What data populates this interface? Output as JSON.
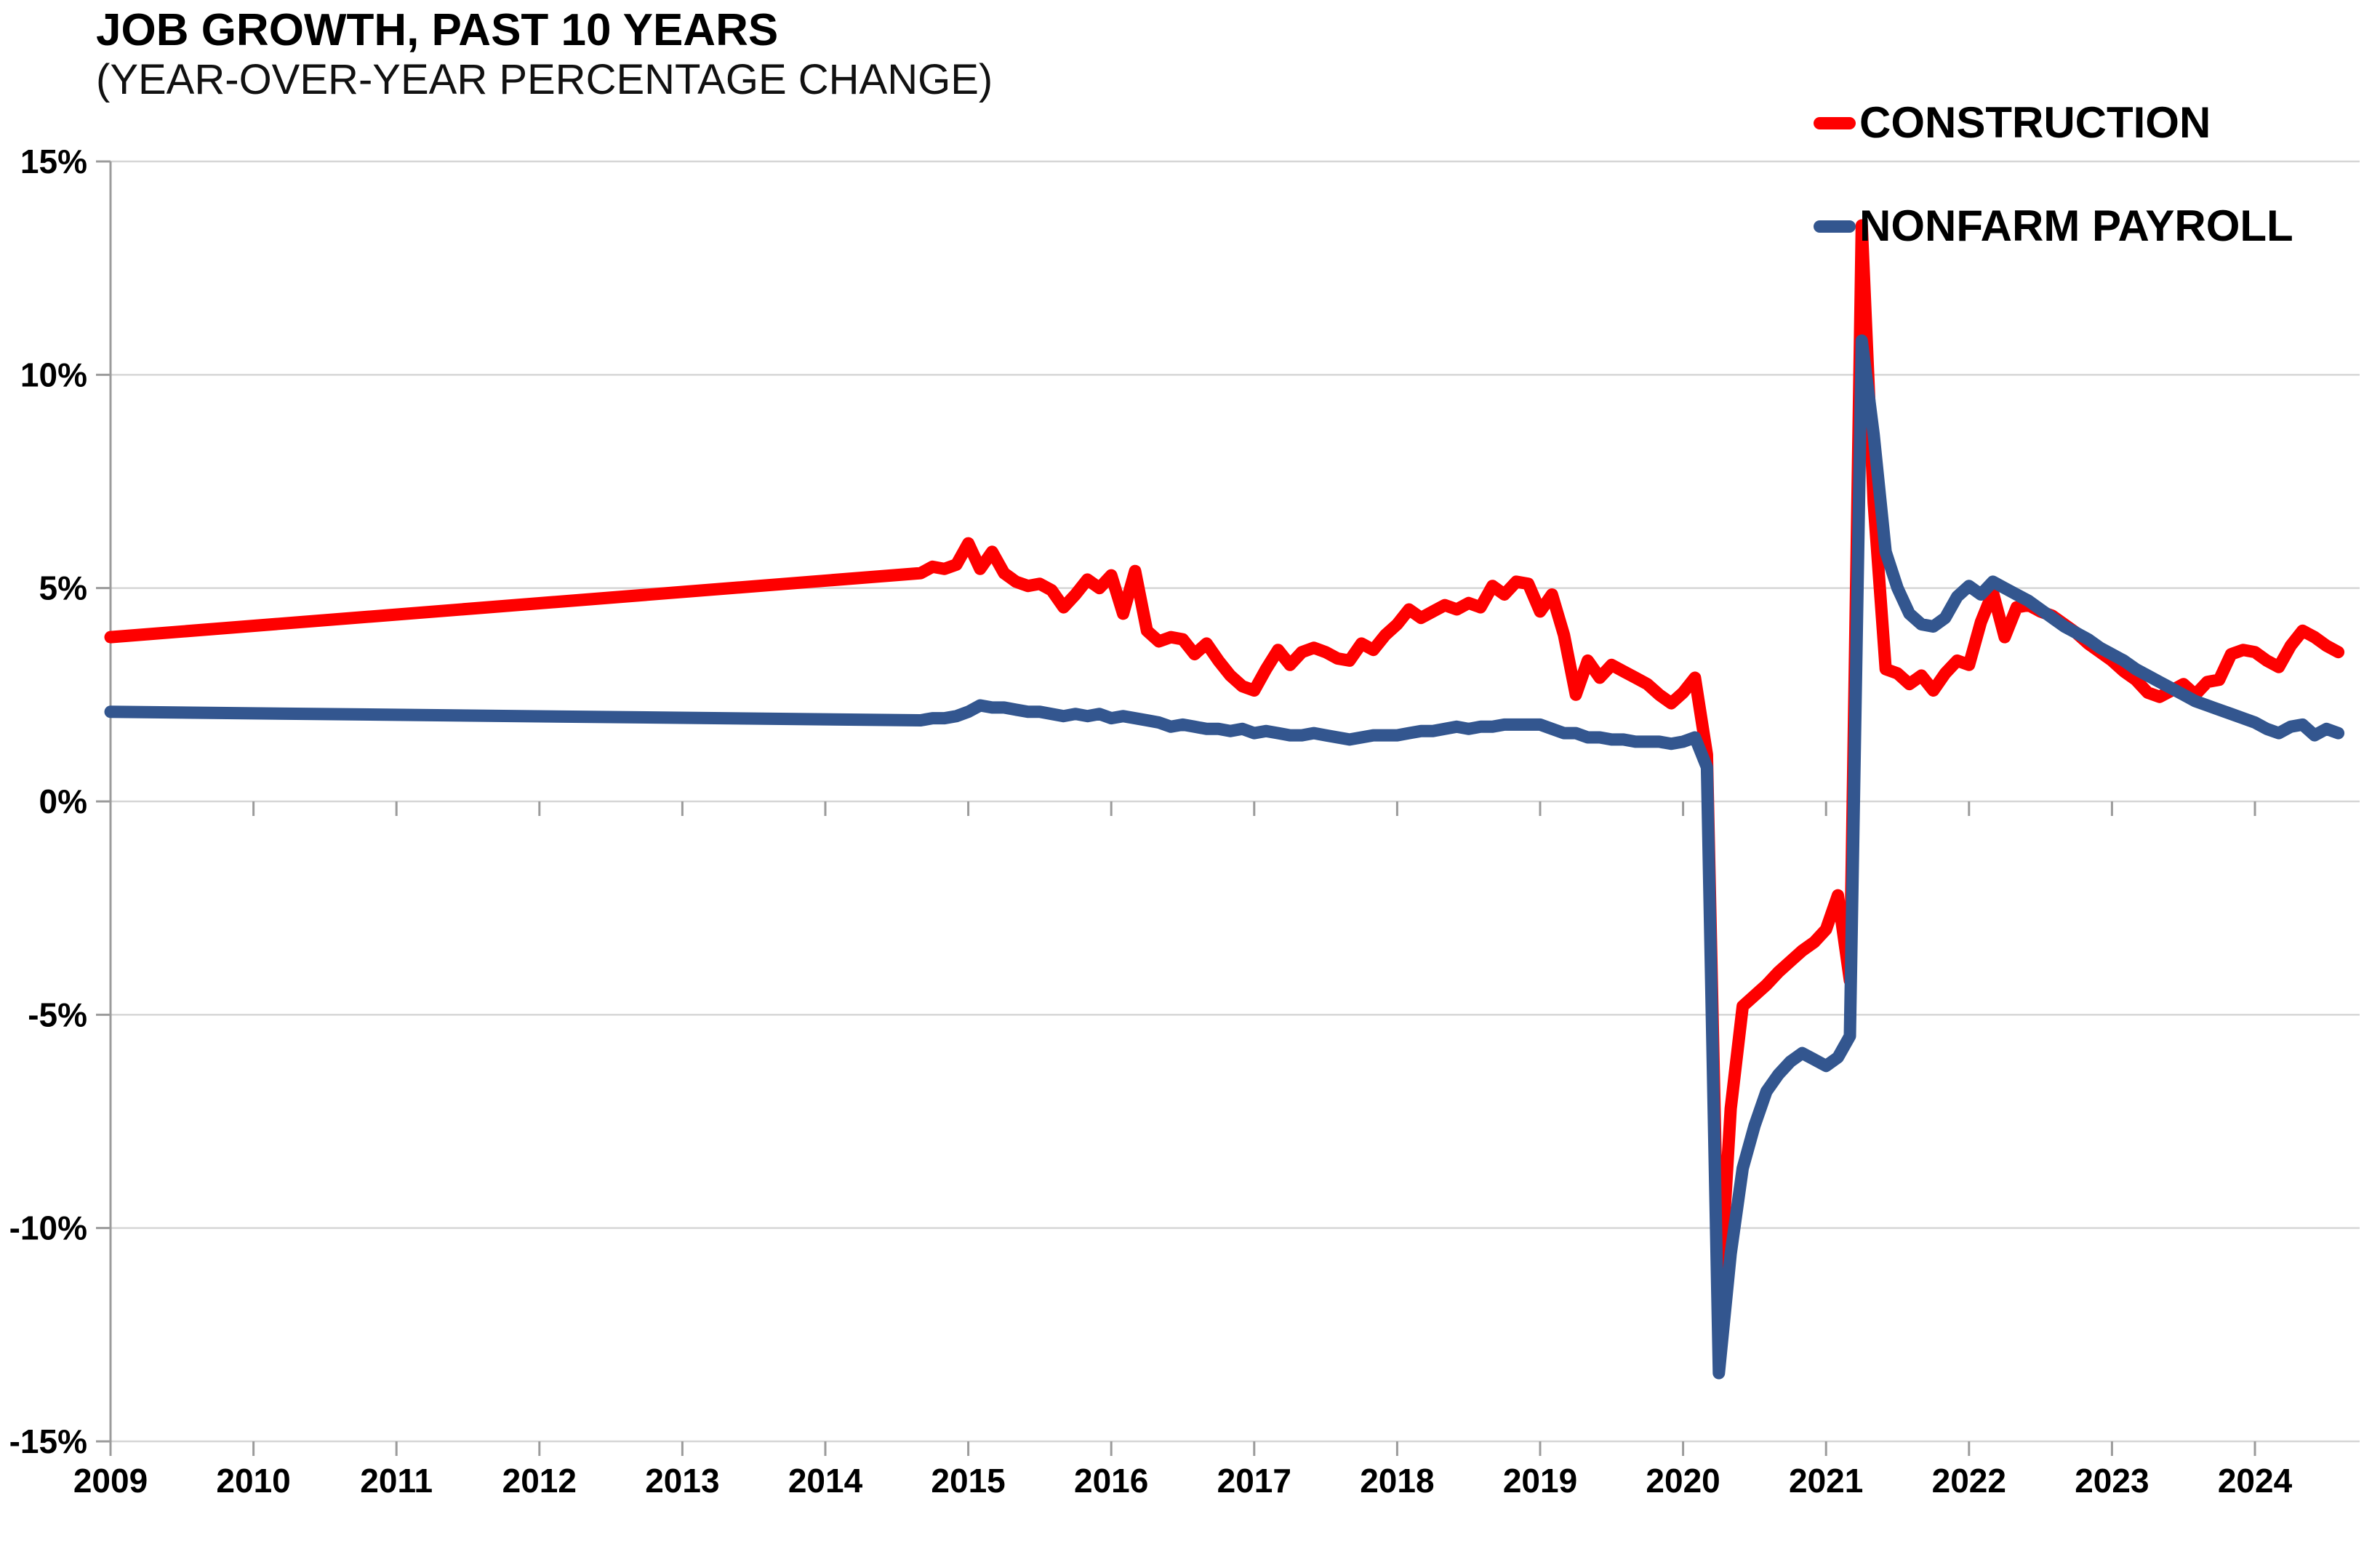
{
  "chart_data": {
    "type": "line",
    "title": "JOB GROWTH, PAST 10 YEARS",
    "subtitle": "(YEAR-OVER-YEAR PERCENTAGE CHANGE)",
    "xlabel": "",
    "ylabel": "",
    "grid": true,
    "legend_position": "top-right",
    "x_axis": {
      "tick_years": [
        2009,
        2010,
        2011,
        2012,
        2013,
        2014,
        2015,
        2016,
        2017,
        2018,
        2019,
        2020,
        2021,
        2022,
        2023,
        2024
      ],
      "tick_labels": [
        "2009",
        "2010",
        "2011",
        "2012",
        "2013",
        "2014",
        "2015",
        "2016",
        "2017",
        "2018",
        "2019",
        "2020",
        "2021",
        "2022",
        "2023",
        "2024"
      ],
      "range": [
        2009,
        2024.75
      ]
    },
    "y_axis": {
      "tick_values": [
        15,
        10,
        5,
        0,
        -5,
        -10,
        -15
      ],
      "tick_labels": [
        "15%",
        "10%",
        "5%",
        "0%",
        "-5%",
        "-10%",
        "-15%"
      ],
      "range": [
        -15,
        15
      ]
    },
    "series": [
      {
        "name": "CONSTRUCTION",
        "color": "#FE0000",
        "points": [
          [
            2009.0,
            3.85
          ],
          [
            2014.667,
            5.35
          ],
          [
            2014.75,
            5.5
          ],
          [
            2014.833,
            5.45
          ],
          [
            2014.917,
            5.55
          ],
          [
            2015.0,
            6.05
          ],
          [
            2015.083,
            5.45
          ],
          [
            2015.167,
            5.85
          ],
          [
            2015.25,
            5.35
          ],
          [
            2015.333,
            5.15
          ],
          [
            2015.417,
            5.05
          ],
          [
            2015.5,
            5.1
          ],
          [
            2015.583,
            4.95
          ],
          [
            2015.667,
            4.55
          ],
          [
            2015.75,
            4.85
          ],
          [
            2015.833,
            5.2
          ],
          [
            2015.917,
            5.0
          ],
          [
            2016.0,
            5.3
          ],
          [
            2016.083,
            4.4
          ],
          [
            2016.167,
            5.4
          ],
          [
            2016.25,
            4.0
          ],
          [
            2016.333,
            3.75
          ],
          [
            2016.417,
            3.85
          ],
          [
            2016.5,
            3.8
          ],
          [
            2016.583,
            3.45
          ],
          [
            2016.667,
            3.7
          ],
          [
            2016.75,
            3.3
          ],
          [
            2016.833,
            2.95
          ],
          [
            2016.917,
            2.7
          ],
          [
            2017.0,
            2.6
          ],
          [
            2017.083,
            3.1
          ],
          [
            2017.167,
            3.55
          ],
          [
            2017.25,
            3.2
          ],
          [
            2017.333,
            3.5
          ],
          [
            2017.417,
            3.6
          ],
          [
            2017.5,
            3.5
          ],
          [
            2017.583,
            3.35
          ],
          [
            2017.667,
            3.3
          ],
          [
            2017.75,
            3.7
          ],
          [
            2017.833,
            3.55
          ],
          [
            2017.917,
            3.9
          ],
          [
            2018.0,
            4.15
          ],
          [
            2018.083,
            4.5
          ],
          [
            2018.167,
            4.3
          ],
          [
            2018.25,
            4.45
          ],
          [
            2018.333,
            4.6
          ],
          [
            2018.417,
            4.5
          ],
          [
            2018.5,
            4.65
          ],
          [
            2018.583,
            4.55
          ],
          [
            2018.667,
            5.05
          ],
          [
            2018.75,
            4.85
          ],
          [
            2018.833,
            5.15
          ],
          [
            2018.917,
            5.1
          ],
          [
            2019.0,
            4.45
          ],
          [
            2019.083,
            4.85
          ],
          [
            2019.167,
            3.9
          ],
          [
            2019.25,
            2.5
          ],
          [
            2019.333,
            3.3
          ],
          [
            2019.417,
            2.9
          ],
          [
            2019.5,
            3.2
          ],
          [
            2019.583,
            3.05
          ],
          [
            2019.667,
            2.9
          ],
          [
            2019.75,
            2.75
          ],
          [
            2019.833,
            2.5
          ],
          [
            2019.917,
            2.3
          ],
          [
            2020.0,
            2.55
          ],
          [
            2020.083,
            2.9
          ],
          [
            2020.167,
            1.1
          ],
          [
            2020.25,
            -11.9
          ],
          [
            2020.333,
            -7.2
          ],
          [
            2020.417,
            -4.8
          ],
          [
            2020.5,
            -4.55
          ],
          [
            2020.583,
            -4.3
          ],
          [
            2020.667,
            -4.0
          ],
          [
            2020.75,
            -3.75
          ],
          [
            2020.833,
            -3.5
          ],
          [
            2020.917,
            -3.3
          ],
          [
            2021.0,
            -3.0
          ],
          [
            2021.083,
            -2.2
          ],
          [
            2021.167,
            -4.2
          ],
          [
            2021.25,
            13.5
          ],
          [
            2021.333,
            7.0
          ],
          [
            2021.417,
            3.1
          ],
          [
            2021.5,
            3.0
          ],
          [
            2021.583,
            2.75
          ],
          [
            2021.667,
            2.95
          ],
          [
            2021.75,
            2.6
          ],
          [
            2021.833,
            3.0
          ],
          [
            2021.917,
            3.3
          ],
          [
            2022.0,
            3.2
          ],
          [
            2022.083,
            4.2
          ],
          [
            2022.167,
            4.9
          ],
          [
            2022.25,
            3.85
          ],
          [
            2022.333,
            4.55
          ],
          [
            2022.417,
            4.6
          ],
          [
            2022.5,
            4.45
          ],
          [
            2022.583,
            4.35
          ],
          [
            2022.667,
            4.15
          ],
          [
            2022.75,
            3.95
          ],
          [
            2022.833,
            3.7
          ],
          [
            2022.917,
            3.5
          ],
          [
            2023.0,
            3.3
          ],
          [
            2023.083,
            3.05
          ],
          [
            2023.167,
            2.85
          ],
          [
            2023.25,
            2.55
          ],
          [
            2023.333,
            2.45
          ],
          [
            2023.417,
            2.6
          ],
          [
            2023.5,
            2.75
          ],
          [
            2023.583,
            2.5
          ],
          [
            2023.667,
            2.8
          ],
          [
            2023.75,
            2.85
          ],
          [
            2023.833,
            3.45
          ],
          [
            2023.917,
            3.55
          ],
          [
            2024.0,
            3.5
          ],
          [
            2024.083,
            3.3
          ],
          [
            2024.167,
            3.15
          ],
          [
            2024.25,
            3.65
          ],
          [
            2024.333,
            4.0
          ],
          [
            2024.417,
            3.85
          ],
          [
            2024.5,
            3.65
          ],
          [
            2024.583,
            3.5
          ]
        ]
      },
      {
        "name": "NONFARM PAYROLL",
        "color": "#33568F",
        "points": [
          [
            2009.0,
            2.1
          ],
          [
            2014.667,
            1.9
          ],
          [
            2014.75,
            1.95
          ],
          [
            2014.833,
            1.95
          ],
          [
            2014.917,
            2.0
          ],
          [
            2015.0,
            2.1
          ],
          [
            2015.083,
            2.25
          ],
          [
            2015.167,
            2.2
          ],
          [
            2015.25,
            2.2
          ],
          [
            2015.333,
            2.15
          ],
          [
            2015.417,
            2.1
          ],
          [
            2015.5,
            2.1
          ],
          [
            2015.583,
            2.05
          ],
          [
            2015.667,
            2.0
          ],
          [
            2015.75,
            2.05
          ],
          [
            2015.833,
            2.0
          ],
          [
            2015.917,
            2.05
          ],
          [
            2016.0,
            1.95
          ],
          [
            2016.083,
            2.0
          ],
          [
            2016.167,
            1.95
          ],
          [
            2016.25,
            1.9
          ],
          [
            2016.333,
            1.85
          ],
          [
            2016.417,
            1.75
          ],
          [
            2016.5,
            1.8
          ],
          [
            2016.583,
            1.75
          ],
          [
            2016.667,
            1.7
          ],
          [
            2016.75,
            1.7
          ],
          [
            2016.833,
            1.65
          ],
          [
            2016.917,
            1.7
          ],
          [
            2017.0,
            1.6
          ],
          [
            2017.083,
            1.65
          ],
          [
            2017.167,
            1.6
          ],
          [
            2017.25,
            1.55
          ],
          [
            2017.333,
            1.55
          ],
          [
            2017.417,
            1.6
          ],
          [
            2017.5,
            1.55
          ],
          [
            2017.583,
            1.5
          ],
          [
            2017.667,
            1.45
          ],
          [
            2017.75,
            1.5
          ],
          [
            2017.833,
            1.55
          ],
          [
            2017.917,
            1.55
          ],
          [
            2018.0,
            1.55
          ],
          [
            2018.083,
            1.6
          ],
          [
            2018.167,
            1.65
          ],
          [
            2018.25,
            1.65
          ],
          [
            2018.333,
            1.7
          ],
          [
            2018.417,
            1.75
          ],
          [
            2018.5,
            1.7
          ],
          [
            2018.583,
            1.75
          ],
          [
            2018.667,
            1.75
          ],
          [
            2018.75,
            1.8
          ],
          [
            2018.833,
            1.8
          ],
          [
            2018.917,
            1.8
          ],
          [
            2019.0,
            1.8
          ],
          [
            2019.083,
            1.7
          ],
          [
            2019.167,
            1.6
          ],
          [
            2019.25,
            1.6
          ],
          [
            2019.333,
            1.5
          ],
          [
            2019.417,
            1.5
          ],
          [
            2019.5,
            1.45
          ],
          [
            2019.583,
            1.45
          ],
          [
            2019.667,
            1.4
          ],
          [
            2019.75,
            1.4
          ],
          [
            2019.833,
            1.4
          ],
          [
            2019.917,
            1.35
          ],
          [
            2020.0,
            1.4
          ],
          [
            2020.083,
            1.5
          ],
          [
            2020.167,
            0.8
          ],
          [
            2020.25,
            -13.4
          ],
          [
            2020.333,
            -10.6
          ],
          [
            2020.417,
            -8.6
          ],
          [
            2020.5,
            -7.6
          ],
          [
            2020.583,
            -6.8
          ],
          [
            2020.667,
            -6.4
          ],
          [
            2020.75,
            -6.1
          ],
          [
            2020.833,
            -5.9
          ],
          [
            2020.917,
            -6.05
          ],
          [
            2021.0,
            -6.2
          ],
          [
            2021.083,
            -6.0
          ],
          [
            2021.167,
            -5.5
          ],
          [
            2021.25,
            10.8
          ],
          [
            2021.333,
            8.6
          ],
          [
            2021.417,
            5.85
          ],
          [
            2021.5,
            5.0
          ],
          [
            2021.583,
            4.4
          ],
          [
            2021.667,
            4.15
          ],
          [
            2021.75,
            4.1
          ],
          [
            2021.833,
            4.3
          ],
          [
            2021.917,
            4.8
          ],
          [
            2022.0,
            5.05
          ],
          [
            2022.083,
            4.85
          ],
          [
            2022.167,
            5.15
          ],
          [
            2022.25,
            5.0
          ],
          [
            2022.333,
            4.85
          ],
          [
            2022.417,
            4.7
          ],
          [
            2022.5,
            4.5
          ],
          [
            2022.583,
            4.3
          ],
          [
            2022.667,
            4.1
          ],
          [
            2022.75,
            3.95
          ],
          [
            2022.833,
            3.8
          ],
          [
            2022.917,
            3.6
          ],
          [
            2023.0,
            3.45
          ],
          [
            2023.083,
            3.3
          ],
          [
            2023.167,
            3.1
          ],
          [
            2023.25,
            2.95
          ],
          [
            2023.333,
            2.8
          ],
          [
            2023.417,
            2.65
          ],
          [
            2023.5,
            2.5
          ],
          [
            2023.583,
            2.35
          ],
          [
            2023.667,
            2.25
          ],
          [
            2023.75,
            2.15
          ],
          [
            2023.833,
            2.05
          ],
          [
            2023.917,
            1.95
          ],
          [
            2024.0,
            1.85
          ],
          [
            2024.083,
            1.7
          ],
          [
            2024.167,
            1.6
          ],
          [
            2024.25,
            1.75
          ],
          [
            2024.333,
            1.8
          ],
          [
            2024.417,
            1.55
          ],
          [
            2024.5,
            1.7
          ],
          [
            2024.583,
            1.6
          ]
        ]
      }
    ],
    "colors": {
      "background": "#ffffff",
      "gridline": "#D6D6D6",
      "axis_line": "#9B9B9B",
      "tick": "#9B9B9B",
      "text": "#000000"
    }
  }
}
